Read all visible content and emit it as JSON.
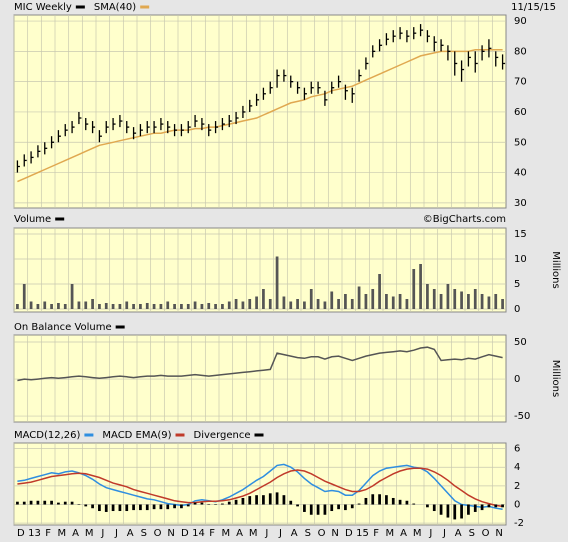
{
  "chart_data": [
    {
      "type": "ohlc",
      "date": "11/15/15",
      "ylim": [
        28.3,
        92
      ],
      "yticks": [
        30,
        40,
        50,
        60,
        70,
        80,
        90
      ],
      "grid": true,
      "series": [
        {
          "name": "MIC Weekly",
          "color": "#000000",
          "high": [
            44,
            46,
            47,
            49,
            50,
            52,
            54,
            56,
            57,
            60,
            58,
            57,
            54,
            57,
            58,
            59,
            57,
            55,
            56,
            57,
            57,
            58,
            57,
            56,
            56,
            57,
            59,
            58,
            56,
            57,
            58,
            59,
            60,
            62,
            64,
            66,
            68,
            70,
            74,
            74,
            72,
            70,
            68,
            70,
            70,
            67,
            70,
            72,
            69,
            68,
            74,
            78,
            82,
            84,
            86,
            87,
            88,
            87,
            88,
            89,
            87,
            85,
            84,
            82,
            80,
            77,
            80,
            80,
            82,
            84,
            80,
            79
          ],
          "low": [
            40,
            42,
            43,
            45,
            46,
            48,
            50,
            52,
            53,
            56,
            54,
            53,
            50,
            53,
            54,
            55,
            53,
            51,
            52,
            53,
            53,
            54,
            53,
            52,
            52,
            53,
            55,
            54,
            52,
            53,
            54,
            55,
            56,
            58,
            60,
            62,
            64,
            66,
            68,
            70,
            68,
            66,
            64,
            66,
            66,
            62,
            66,
            68,
            64,
            63,
            70,
            74,
            78,
            80,
            82,
            83,
            84,
            83,
            84,
            85,
            83,
            80,
            80,
            77,
            72,
            70,
            75,
            73,
            77,
            78,
            75,
            74
          ],
          "close": [
            42,
            44,
            45,
            47,
            48,
            50,
            52,
            54,
            55,
            58,
            56,
            55,
            52,
            55,
            56,
            57,
            55,
            53,
            54,
            55,
            55,
            56,
            55,
            54,
            54,
            55,
            57,
            56,
            54,
            55,
            56,
            57,
            58,
            60,
            62,
            64,
            66,
            68,
            72,
            72,
            70,
            68,
            66,
            68,
            68,
            64,
            68,
            70,
            67,
            66,
            72,
            76,
            80,
            82,
            84,
            85,
            86,
            85,
            86,
            87,
            85,
            83,
            82,
            80,
            76,
            74,
            78,
            76,
            80,
            81,
            78,
            76
          ]
        },
        {
          "name": "SMA(40)",
          "color": "#e0a850",
          "values": [
            37,
            38,
            39,
            40,
            41,
            42,
            43,
            44,
            45,
            46,
            47,
            48,
            49,
            49.5,
            50,
            50.5,
            51,
            51.5,
            52,
            52.5,
            53,
            53,
            53.5,
            54,
            54,
            54,
            54.5,
            54.5,
            55,
            55,
            55.5,
            56,
            56.5,
            57,
            57.5,
            58,
            59,
            60,
            61,
            62,
            63,
            63.5,
            64,
            65,
            65.5,
            66,
            67,
            67.5,
            68,
            68.5,
            69.5,
            70.5,
            71.5,
            72.5,
            73.5,
            74.5,
            75.5,
            76.5,
            77.5,
            78.5,
            79,
            79.5,
            80,
            80,
            80,
            80,
            80,
            80.5,
            80.5,
            80.5,
            80.5,
            80.5
          ]
        }
      ]
    },
    {
      "type": "bar",
      "title": "Volume",
      "source": "©BigCharts.com",
      "y_label": "Millions",
      "color": "#555555",
      "ylim": [
        -0.6,
        16.2
      ],
      "yticks": [
        0,
        5,
        10,
        15
      ],
      "grid": true,
      "values": [
        1,
        5,
        1.5,
        1,
        1.5,
        1,
        1.2,
        1,
        5,
        1.5,
        1.5,
        2,
        1,
        1.2,
        1,
        1,
        1.5,
        1,
        1,
        1.2,
        1,
        1,
        1.5,
        1,
        1,
        1,
        1.5,
        1,
        1.2,
        1,
        1,
        1.5,
        2,
        1.5,
        2,
        2.5,
        4,
        2,
        10.5,
        2.5,
        1.5,
        2,
        1.5,
        4,
        2,
        1.5,
        3.5,
        2,
        3,
        2,
        4.5,
        3,
        4,
        7,
        3,
        2.5,
        3,
        2,
        8,
        9,
        5,
        4,
        3,
        5,
        4,
        3.5,
        3,
        4,
        3,
        2.5,
        3,
        2
      ]
    },
    {
      "type": "line",
      "title": "On Balance Volume",
      "y_label": "Millions",
      "color": "#555555",
      "ylim": [
        -58,
        59.5
      ],
      "yticks": [
        -50,
        0,
        50
      ],
      "grid": true,
      "values": [
        -2,
        0,
        -1,
        0,
        1,
        2,
        1,
        2,
        3,
        4,
        3,
        2,
        1,
        2,
        3,
        4,
        3,
        2,
        3,
        4,
        4,
        5,
        4,
        4,
        4,
        5,
        6,
        5,
        4,
        5,
        6,
        7,
        8,
        9,
        10,
        11,
        12,
        13,
        35,
        33,
        31,
        29,
        28,
        30,
        30,
        27,
        30,
        31,
        28,
        25,
        28,
        31,
        33,
        35,
        36,
        37,
        38,
        37,
        39,
        42,
        43,
        40,
        25,
        26,
        27,
        26,
        28,
        27,
        30,
        33,
        31,
        29
      ]
    },
    {
      "type": "macd",
      "ylim": [
        -2.2,
        6.6
      ],
      "yticks": [
        -2,
        0,
        2,
        4,
        6
      ],
      "grid": true,
      "x_labels": [
        "D",
        "13",
        "F",
        "M",
        "A",
        "M",
        "J",
        "J",
        "A",
        "S",
        "O",
        "N",
        "D",
        "14",
        "F",
        "M",
        "A",
        "M",
        "J",
        "J",
        "A",
        "S",
        "O",
        "N",
        "D",
        "15",
        "F",
        "M",
        "A",
        "M",
        "J",
        "J",
        "A",
        "S",
        "O",
        "N"
      ],
      "series": [
        {
          "name": "MACD(12,26)",
          "type": "line",
          "color": "#2f8ee0",
          "values": [
            2.5,
            2.6,
            2.8,
            3,
            3.2,
            3.4,
            3.3,
            3.5,
            3.6,
            3.4,
            3.1,
            2.7,
            2.2,
            1.8,
            1.6,
            1.4,
            1.2,
            1,
            0.8,
            0.6,
            0.5,
            0.3,
            0.1,
            0,
            -0.1,
            0,
            0.4,
            0.5,
            0.4,
            0.3,
            0.5,
            0.8,
            1.2,
            1.6,
            2.1,
            2.6,
            3,
            3.6,
            4.2,
            4.3,
            4,
            3.5,
            2.8,
            2.2,
            1.8,
            1.4,
            1.5,
            1.4,
            1,
            1,
            1.5,
            2.3,
            3.1,
            3.6,
            3.9,
            4,
            4.1,
            4.2,
            4,
            3.9,
            3.5,
            2.8,
            2,
            1.2,
            0.4,
            0,
            -0.1,
            -0.2,
            -0.3,
            -0.2,
            -0.4,
            -0.5
          ]
        },
        {
          "name": "MACD EMA(9)",
          "type": "line",
          "color": "#c03a2a",
          "values": [
            2.2,
            2.3,
            2.4,
            2.6,
            2.8,
            3,
            3.1,
            3.2,
            3.3,
            3.35,
            3.3,
            3.1,
            2.9,
            2.6,
            2.3,
            2.1,
            1.9,
            1.6,
            1.4,
            1.2,
            1,
            0.8,
            0.6,
            0.4,
            0.3,
            0.2,
            0.2,
            0.3,
            0.35,
            0.35,
            0.4,
            0.5,
            0.7,
            0.9,
            1.2,
            1.6,
            2,
            2.4,
            2.9,
            3.3,
            3.6,
            3.7,
            3.6,
            3.3,
            2.9,
            2.5,
            2.2,
            1.9,
            1.6,
            1.4,
            1.4,
            1.6,
            2,
            2.5,
            2.9,
            3.3,
            3.6,
            3.8,
            3.9,
            3.9,
            3.8,
            3.5,
            3.1,
            2.6,
            2,
            1.5,
            1,
            0.6,
            0.3,
            0.1,
            -0.1,
            -0.2
          ]
        },
        {
          "name": "Divergence",
          "type": "bar",
          "color": "#000000",
          "values": [
            0.3,
            0.3,
            0.4,
            0.4,
            0.4,
            0.4,
            0.2,
            0.3,
            0.3,
            0.05,
            -0.2,
            -0.4,
            -0.7,
            -0.8,
            -0.7,
            -0.7,
            -0.7,
            -0.6,
            -0.6,
            -0.6,
            -0.5,
            -0.5,
            -0.5,
            -0.4,
            -0.4,
            -0.2,
            0.2,
            0.2,
            0.05,
            -0.05,
            0.1,
            0.3,
            0.5,
            0.7,
            0.9,
            1,
            1,
            1.2,
            1.3,
            1,
            0.4,
            -0.2,
            -0.8,
            -1.1,
            -1.1,
            -1.1,
            -0.7,
            -0.5,
            -0.6,
            -0.4,
            0.1,
            0.7,
            1.1,
            1.1,
            1,
            0.7,
            0.5,
            0.4,
            0.1,
            0,
            -0.3,
            -0.7,
            -1.1,
            -1.4,
            -1.6,
            -1.5,
            -1.1,
            -0.8,
            -0.6,
            -0.3,
            -0.3,
            -0.3
          ]
        }
      ]
    }
  ]
}
